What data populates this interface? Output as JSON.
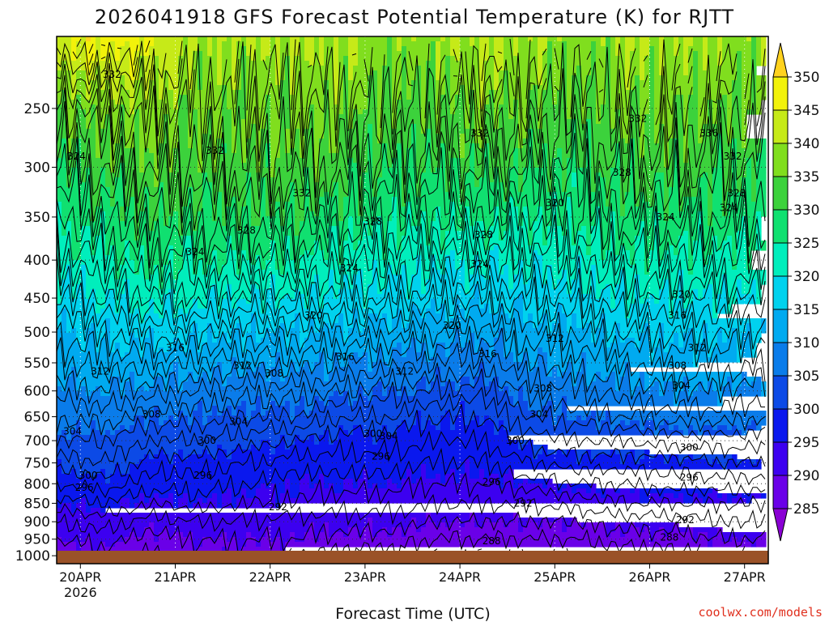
{
  "chart_data": {
    "type": "heatmap",
    "title": "2026041918 GFS Forecast Potential Temperature (K) for RJTT",
    "xlabel": "Forecast Time (UTC)",
    "ylabel": "",
    "credit": "coolwx.com/models",
    "x_ticks": [
      {
        "label": "20APR",
        "sub": "2026",
        "hour": 6
      },
      {
        "label": "21APR",
        "sub": "",
        "hour": 30
      },
      {
        "label": "22APR",
        "sub": "",
        "hour": 54
      },
      {
        "label": "23APR",
        "sub": "",
        "hour": 78
      },
      {
        "label": "24APR",
        "sub": "",
        "hour": 102
      },
      {
        "label": "25APR",
        "sub": "",
        "hour": 126
      },
      {
        "label": "26APR",
        "sub": "",
        "hour": 150
      },
      {
        "label": "27APR",
        "sub": "",
        "hour": 174
      }
    ],
    "xlim_hours": [
      0,
      180
    ],
    "y_ticks": [
      250,
      300,
      350,
      400,
      450,
      500,
      550,
      600,
      650,
      700,
      750,
      800,
      850,
      900,
      950,
      1000
    ],
    "y_units": "hPa",
    "ylim": [
      200,
      1025
    ],
    "y_scale": "log",
    "grid": "dotted",
    "colorbar_levels": [
      285,
      290,
      295,
      300,
      305,
      310,
      315,
      320,
      325,
      330,
      335,
      340,
      345,
      350
    ],
    "colorbar_colors": [
      "#8a00d4",
      "#6a00e8",
      "#3c00f0",
      "#0a18ee",
      "#0c4ae6",
      "#0a7cea",
      "#00aaf0",
      "#00d2ee",
      "#00eebc",
      "#10e070",
      "#3cd23c",
      "#80de1e",
      "#c6ea18",
      "#f2f20a",
      "#ffd21e"
    ],
    "ground_color": "#9a5228",
    "profile_hours": [
      0,
      12,
      24,
      36,
      48,
      60,
      72,
      84,
      96,
      108,
      120,
      132,
      144,
      156,
      168,
      180
    ],
    "profile_pressures": [
      1000,
      950,
      900,
      850,
      800,
      750,
      700,
      650,
      600,
      550,
      500,
      450,
      400,
      350,
      300,
      250,
      200
    ],
    "theta_grid": [
      [
        288,
        290,
        292,
        295,
        298,
        301,
        304,
        306,
        309,
        312,
        314,
        318,
        322,
        326,
        330,
        334,
        345
      ],
      [
        289,
        291,
        293,
        296,
        299,
        302,
        304,
        307,
        310,
        313,
        316,
        320,
        324,
        328,
        332,
        337,
        348
      ],
      [
        287,
        289,
        291,
        294,
        297,
        299,
        302,
        305,
        309,
        313,
        317,
        322,
        326,
        330,
        334,
        338,
        345
      ],
      [
        289,
        290,
        292,
        295,
        297,
        299,
        302,
        305,
        308,
        312,
        316,
        321,
        325,
        329,
        333,
        336,
        340
      ],
      [
        289,
        290,
        292,
        294,
        296,
        298,
        301,
        304,
        307,
        311,
        315,
        320,
        325,
        329,
        333,
        336,
        340
      ],
      [
        288,
        290,
        291,
        294,
        295,
        297,
        300,
        304,
        307,
        311,
        315,
        320,
        325,
        329,
        333,
        336,
        340
      ],
      [
        287,
        289,
        291,
        293,
        295,
        297,
        299,
        302,
        306,
        310,
        314,
        319,
        323,
        328,
        332,
        336,
        340
      ],
      [
        287,
        289,
        291,
        293,
        295,
        297,
        299,
        302,
        305,
        309,
        313,
        318,
        322,
        326,
        330,
        334,
        338
      ],
      [
        286,
        288,
        290,
        292,
        294,
        296,
        298,
        300,
        304,
        308,
        312,
        317,
        321,
        326,
        330,
        334,
        338
      ],
      [
        286,
        288,
        290,
        292,
        294,
        296,
        298,
        300,
        303,
        307,
        311,
        316,
        321,
        326,
        331,
        336,
        342
      ],
      [
        286,
        288,
        290,
        292,
        295,
        298,
        301,
        304,
        307,
        310,
        313,
        317,
        321,
        325,
        330,
        335,
        340
      ],
      [
        286,
        288,
        290,
        293,
        296,
        299,
        302,
        305,
        308,
        311,
        314,
        318,
        322,
        326,
        329,
        333,
        337
      ],
      [
        287,
        289,
        291,
        294,
        296,
        299,
        302,
        306,
        309,
        312,
        316,
        320,
        324,
        328,
        332,
        336,
        340
      ],
      [
        287,
        289,
        291,
        294,
        297,
        299,
        303,
        307,
        310,
        313,
        316,
        320,
        324,
        328,
        333,
        336,
        340
      ],
      [
        288,
        290,
        292,
        294,
        297,
        300,
        303,
        307,
        310,
        313,
        316,
        320,
        324,
        328,
        331,
        335,
        340
      ],
      [
        288,
        290,
        292,
        294,
        297,
        300,
        303,
        306,
        309,
        312,
        315,
        319,
        323,
        327,
        330,
        334,
        338
      ]
    ],
    "contour_labels": [
      {
        "text": "332",
        "hour": 14,
        "p": 225
      },
      {
        "text": "324",
        "hour": 5,
        "p": 290
      },
      {
        "text": "332",
        "hour": 40,
        "p": 285
      },
      {
        "text": "332",
        "hour": 62,
        "p": 325
      },
      {
        "text": "328",
        "hour": 48,
        "p": 365
      },
      {
        "text": "324",
        "hour": 35,
        "p": 390
      },
      {
        "text": "328",
        "hour": 80,
        "p": 355
      },
      {
        "text": "332",
        "hour": 107,
        "p": 270
      },
      {
        "text": "328",
        "hour": 108,
        "p": 370
      },
      {
        "text": "324",
        "hour": 74,
        "p": 410
      },
      {
        "text": "324",
        "hour": 107,
        "p": 405
      },
      {
        "text": "320",
        "hour": 126,
        "p": 335
      },
      {
        "text": "332",
        "hour": 147,
        "p": 258
      },
      {
        "text": "336",
        "hour": 165,
        "p": 270
      },
      {
        "text": "328",
        "hour": 143,
        "p": 305
      },
      {
        "text": "324",
        "hour": 154,
        "p": 350
      },
      {
        "text": "332",
        "hour": 171,
        "p": 290
      },
      {
        "text": "328",
        "hour": 172,
        "p": 325
      },
      {
        "text": "324",
        "hour": 170,
        "p": 340
      },
      {
        "text": "320",
        "hour": 65,
        "p": 475
      },
      {
        "text": "320",
        "hour": 100,
        "p": 490
      },
      {
        "text": "320",
        "hour": 158,
        "p": 445
      },
      {
        "text": "316",
        "hour": 30,
        "p": 525
      },
      {
        "text": "316",
        "hour": 73,
        "p": 540
      },
      {
        "text": "316",
        "hour": 109,
        "p": 535
      },
      {
        "text": "316",
        "hour": 157,
        "p": 475
      },
      {
        "text": "312",
        "hour": 11,
        "p": 565
      },
      {
        "text": "312",
        "hour": 47,
        "p": 555
      },
      {
        "text": "312",
        "hour": 88,
        "p": 565
      },
      {
        "text": "312",
        "hour": 126,
        "p": 510
      },
      {
        "text": "312",
        "hour": 162,
        "p": 525
      },
      {
        "text": "308",
        "hour": 55,
        "p": 568
      },
      {
        "text": "308",
        "hour": 24,
        "p": 645
      },
      {
        "text": "308",
        "hour": 123,
        "p": 595
      },
      {
        "text": "308",
        "hour": 157,
        "p": 555
      },
      {
        "text": "304",
        "hour": 4,
        "p": 680
      },
      {
        "text": "304",
        "hour": 46,
        "p": 660
      },
      {
        "text": "304",
        "hour": 84,
        "p": 690
      },
      {
        "text": "304",
        "hour": 122,
        "p": 645
      },
      {
        "text": "304",
        "hour": 158,
        "p": 590
      },
      {
        "text": "300",
        "hour": 38,
        "p": 700
      },
      {
        "text": "300",
        "hour": 80,
        "p": 685
      },
      {
        "text": "300",
        "hour": 116,
        "p": 700
      },
      {
        "text": "300",
        "hour": 160,
        "p": 715
      },
      {
        "text": "296",
        "hour": 82,
        "p": 735
      },
      {
        "text": "300",
        "hour": 8,
        "p": 780
      },
      {
        "text": "296",
        "hour": 7,
        "p": 810
      },
      {
        "text": "296",
        "hour": 37,
        "p": 780
      },
      {
        "text": "296",
        "hour": 110,
        "p": 795
      },
      {
        "text": "296",
        "hour": 160,
        "p": 785
      },
      {
        "text": "292",
        "hour": 56,
        "p": 860
      },
      {
        "text": "292",
        "hour": 118,
        "p": 850
      },
      {
        "text": "292",
        "hour": 159,
        "p": 895
      },
      {
        "text": "288",
        "hour": 110,
        "p": 955
      },
      {
        "text": "288",
        "hour": 155,
        "p": 945
      }
    ]
  }
}
